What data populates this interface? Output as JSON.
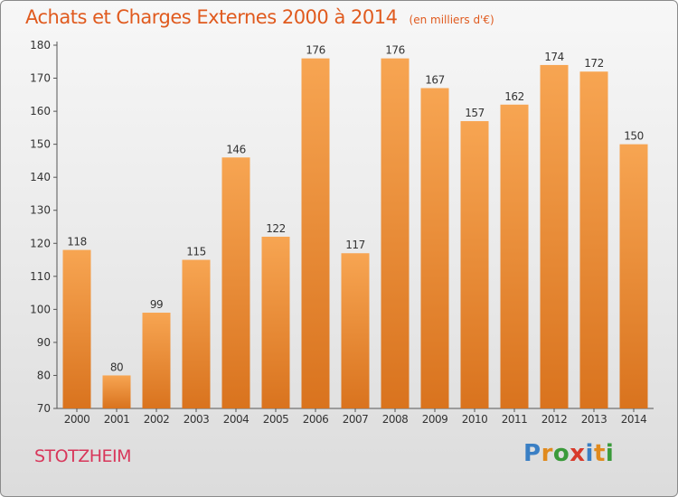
{
  "header": {
    "title": "Achats et Charges Externes 2000 à 2014",
    "subtitle": "(en milliers d'€)"
  },
  "footer": {
    "city": "STOTZHEIM",
    "logo_letters": [
      "P",
      "r",
      "o",
      "x",
      "i",
      "t",
      "i"
    ],
    "logo_colors": [
      "#3a7fc4",
      "#e08a1e",
      "#3a9a3a",
      "#d83a2a",
      "#3a7fc4",
      "#e08a1e",
      "#3a9a3a"
    ]
  },
  "colors": {
    "bar_top": "#f7a552",
    "bar_bottom": "#d9731e",
    "text": "#333333",
    "grid": "#c8c8c8"
  },
  "chart_data": {
    "type": "bar",
    "categories": [
      "2000",
      "2001",
      "2002",
      "2003",
      "2004",
      "2005",
      "2006",
      "2007",
      "2008",
      "2009",
      "2010",
      "2011",
      "2012",
      "2013",
      "2014"
    ],
    "values": [
      118,
      80,
      99,
      115,
      146,
      122,
      176,
      117,
      176,
      167,
      157,
      162,
      174,
      172,
      150
    ],
    "ylim": [
      70,
      180
    ],
    "yticks": [
      70,
      80,
      90,
      100,
      110,
      120,
      130,
      140,
      150,
      160,
      170,
      180
    ],
    "grid": false
  }
}
